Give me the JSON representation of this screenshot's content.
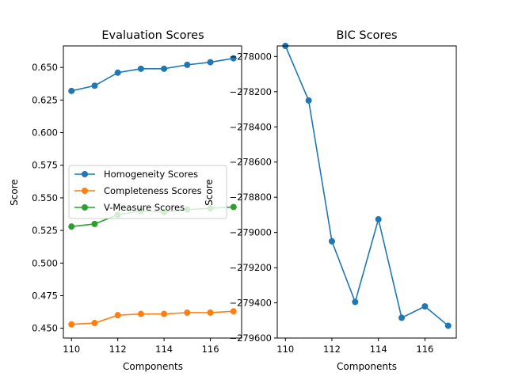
{
  "chart_data": [
    {
      "type": "line",
      "title": "Evaluation Scores",
      "xlabel": "Components",
      "ylabel": "Score",
      "x": [
        110,
        111,
        112,
        113,
        114,
        115,
        116,
        117
      ],
      "xlim": [
        109.65,
        117.35
      ],
      "ylim": [
        0.4425,
        0.6665
      ],
      "xticks": [
        110,
        112,
        114,
        116
      ],
      "yticks": [
        0.45,
        0.475,
        0.5,
        0.525,
        0.55,
        0.575,
        0.6,
        0.625,
        0.65
      ],
      "ytick_labels": [
        "0.450",
        "0.475",
        "0.500",
        "0.525",
        "0.550",
        "0.575",
        "0.600",
        "0.625",
        "0.650"
      ],
      "grid": false,
      "legend": "center-left",
      "series": [
        {
          "name": "Homogeneity Scores",
          "color": "#1f77b4",
          "values": [
            0.632,
            0.636,
            0.646,
            0.649,
            0.649,
            0.652,
            0.654,
            0.657
          ]
        },
        {
          "name": "Completeness Scores",
          "color": "#ff7f0e",
          "values": [
            0.453,
            0.454,
            0.46,
            0.461,
            0.461,
            0.462,
            0.462,
            0.463
          ]
        },
        {
          "name": "V-Measure Scores",
          "color": "#2ca02c",
          "values": [
            0.528,
            0.53,
            0.537,
            0.54,
            0.539,
            0.541,
            0.542,
            0.543
          ]
        }
      ]
    },
    {
      "type": "line",
      "title": "BIC Scores",
      "xlabel": "Components",
      "ylabel": "Score",
      "x": [
        110,
        111,
        112,
        113,
        114,
        115,
        116,
        117
      ],
      "xlim": [
        109.65,
        117.35
      ],
      "ylim": [
        -279600,
        -277940
      ],
      "xticks": [
        110,
        112,
        114,
        116
      ],
      "yticks": [
        -278000,
        -278200,
        -278400,
        -278600,
        -278800,
        -279000,
        -279200,
        -279400,
        -279600
      ],
      "ytick_labels": [
        "−278000",
        "−278200",
        "−278400",
        "−278600",
        "−278800",
        "−279000",
        "−279200",
        "−279400",
        "−279600"
      ],
      "grid": false,
      "series": [
        {
          "color": "#1f77b4",
          "values": [
            -277940,
            -278250,
            -279050,
            -279395,
            -278925,
            -279485,
            -279420,
            -279530
          ]
        }
      ]
    }
  ]
}
